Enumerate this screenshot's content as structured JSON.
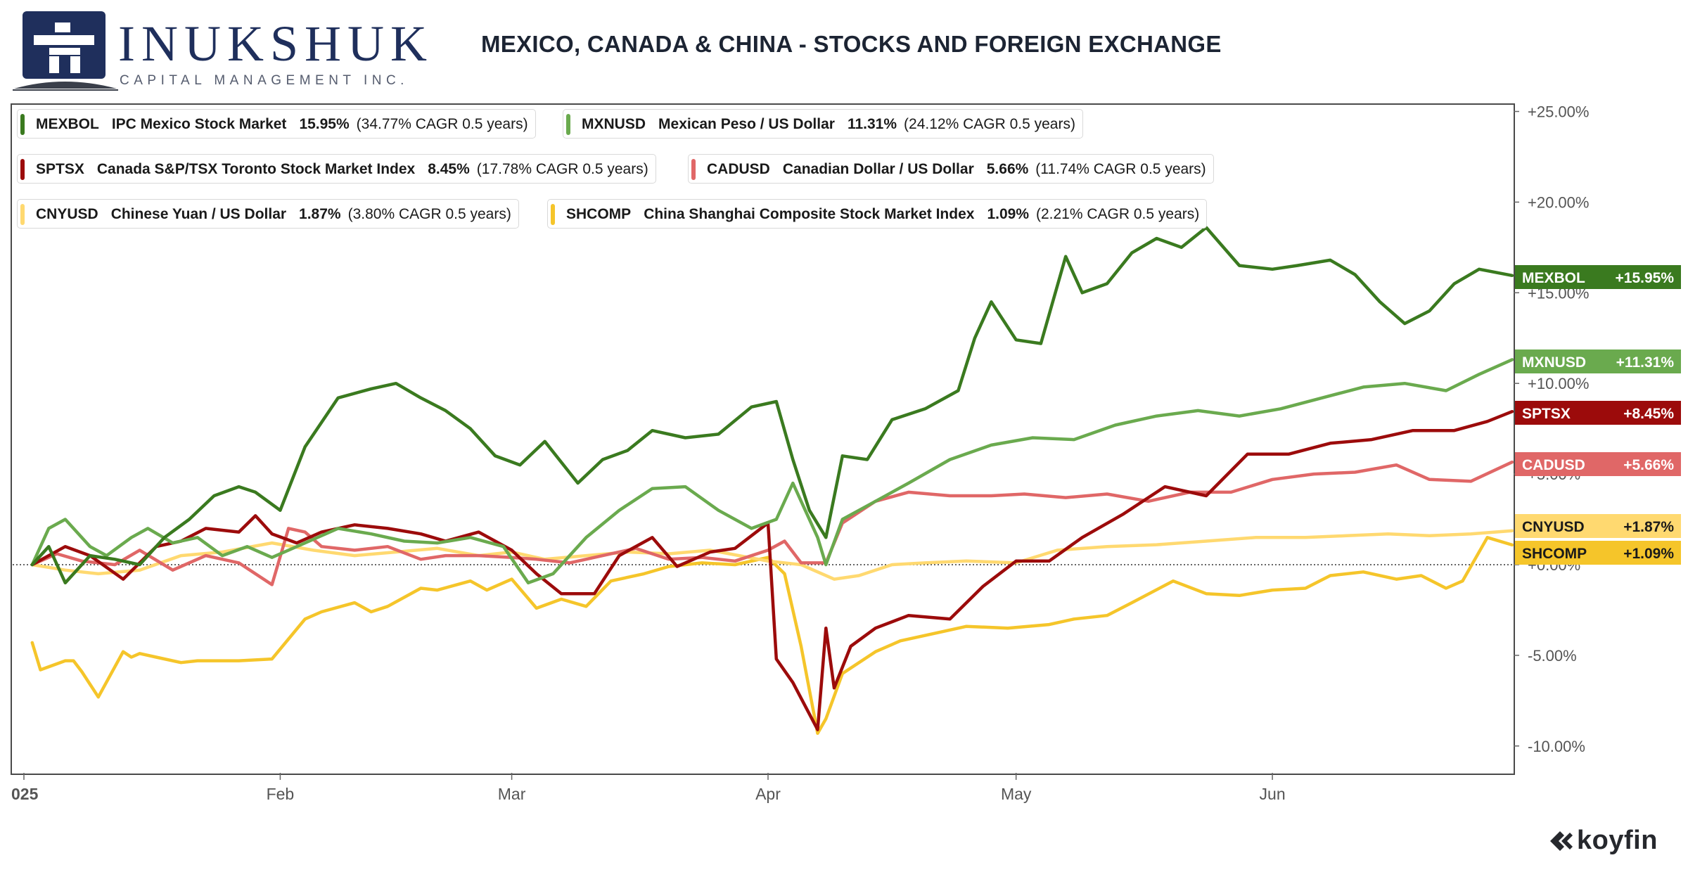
{
  "brand": {
    "name": "INUKSHUK",
    "subtitle": "CAPITAL MANAGEMENT INC."
  },
  "title": "MEXICO, CANADA & CHINA - STOCKS AND FOREIGN EXCHANGE",
  "footer": {
    "provider": "koyfin"
  },
  "legend": [
    {
      "symbol": "MEXBOL",
      "name": "IPC Mexico Stock Market",
      "pct": "15.95%",
      "cagr": "(34.77% CAGR 0.5 years)",
      "color": "#3a7a1f"
    },
    {
      "symbol": "MXNUSD",
      "name": "Mexican Peso / US Dollar",
      "pct": "11.31%",
      "cagr": "(24.12% CAGR 0.5 years)",
      "color": "#6aaa4e"
    },
    {
      "symbol": "SPTSX",
      "name": "Canada S&P/TSX Toronto Stock Market Index",
      "pct": "8.45%",
      "cagr": "(17.78% CAGR 0.5 years)",
      "color": "#9c0b0b"
    },
    {
      "symbol": "CADUSD",
      "name": "Canadian Dollar / US Dollar",
      "pct": "5.66%",
      "cagr": "(11.74% CAGR 0.5 years)",
      "color": "#e06767"
    },
    {
      "symbol": "CNYUSD",
      "name": "Chinese Yuan / US Dollar",
      "pct": "1.87%",
      "cagr": "(3.80% CAGR 0.5 years)",
      "color": "#ffd970"
    },
    {
      "symbol": "SHCOMP",
      "name": "China Shanghai Composite Stock Market Index",
      "pct": "1.09%",
      "cagr": "(2.21% CAGR 0.5 years)",
      "color": "#f5c52a"
    }
  ],
  "chart_data": {
    "type": "line",
    "ylabel": "",
    "y_unit": "%",
    "ylim": [
      -11.5,
      25.3
    ],
    "y_ticks": [
      "+25.00%",
      "+20.00%",
      "+15.00%",
      "+10.00%",
      "+5.00%",
      "+0.00%",
      "-5.00%",
      "-10.00%"
    ],
    "y_tick_values": [
      25,
      20,
      15,
      10,
      5,
      0,
      -5,
      -10
    ],
    "x_ticks": [
      "025",
      "Feb",
      "Mar",
      "Apr",
      "May",
      "Jun"
    ],
    "x_tick_dates": [
      "2025-01-02",
      "2025-02-01",
      "2025-03-01",
      "2025-04-01",
      "2025-05-01",
      "2025-06-01"
    ],
    "x_range": [
      "2025-01-01",
      "2025-06-30"
    ],
    "zero_line": true,
    "series": [
      {
        "name": "SHCOMP",
        "color": "#f5c52a",
        "end_label": "+1.09%",
        "x": [
          "2025-01-02",
          "2025-01-03",
          "2025-01-06",
          "2025-01-07",
          "2025-01-08",
          "2025-01-10",
          "2025-01-13",
          "2025-01-14",
          "2025-01-15",
          "2025-01-17",
          "2025-01-20",
          "2025-01-22",
          "2025-01-24",
          "2025-01-27",
          "2025-01-31",
          "2025-02-04",
          "2025-02-06",
          "2025-02-10",
          "2025-02-12",
          "2025-02-14",
          "2025-02-18",
          "2025-02-20",
          "2025-02-24",
          "2025-02-26",
          "2025-03-01",
          "2025-03-04",
          "2025-03-07",
          "2025-03-10",
          "2025-03-13",
          "2025-03-17",
          "2025-03-20",
          "2025-03-24",
          "2025-03-28",
          "2025-04-01",
          "2025-04-03",
          "2025-04-05",
          "2025-04-07",
          "2025-04-08",
          "2025-04-10",
          "2025-04-14",
          "2025-04-17",
          "2025-04-22",
          "2025-04-25",
          "2025-04-30",
          "2025-05-05",
          "2025-05-08",
          "2025-05-12",
          "2025-05-15",
          "2025-05-20",
          "2025-05-24",
          "2025-05-28",
          "2025-06-01",
          "2025-06-05",
          "2025-06-08",
          "2025-06-12",
          "2025-06-16",
          "2025-06-19",
          "2025-06-22",
          "2025-06-24",
          "2025-06-27",
          "2025-06-30"
        ],
        "values": [
          -4.3,
          -5.8,
          -5.3,
          -5.3,
          -5.9,
          -7.3,
          -4.8,
          -5.1,
          -4.9,
          -5.1,
          -5.4,
          -5.3,
          -5.3,
          -5.3,
          -5.2,
          -3.0,
          -2.6,
          -2.1,
          -2.6,
          -2.3,
          -1.3,
          -1.4,
          -0.9,
          -1.4,
          -0.8,
          -2.4,
          -1.9,
          -2.3,
          -0.9,
          -0.5,
          -0.1,
          0.1,
          0.0,
          0.4,
          -0.5,
          -4.5,
          -9.3,
          -8.5,
          -6.0,
          -4.8,
          -4.2,
          -3.7,
          -3.4,
          -3.5,
          -3.3,
          -3.0,
          -2.8,
          -2.1,
          -0.9,
          -1.6,
          -1.7,
          -1.4,
          -1.3,
          -0.6,
          -0.4,
          -0.8,
          -0.6,
          -1.3,
          -0.9,
          1.5,
          1.09
        ]
      },
      {
        "name": "CNYUSD",
        "color": "#ffd970",
        "end_label": "+1.87%",
        "x": [
          "2025-01-02",
          "2025-01-06",
          "2025-01-10",
          "2025-01-15",
          "2025-01-20",
          "2025-01-25",
          "2025-01-31",
          "2025-02-05",
          "2025-02-10",
          "2025-02-15",
          "2025-02-20",
          "2025-02-25",
          "2025-03-01",
          "2025-03-05",
          "2025-03-10",
          "2025-03-15",
          "2025-03-20",
          "2025-03-25",
          "2025-04-01",
          "2025-04-05",
          "2025-04-09",
          "2025-04-12",
          "2025-04-16",
          "2025-04-20",
          "2025-04-25",
          "2025-05-01",
          "2025-05-06",
          "2025-05-12",
          "2025-05-18",
          "2025-05-24",
          "2025-05-30",
          "2025-06-05",
          "2025-06-10",
          "2025-06-15",
          "2025-06-20",
          "2025-06-25",
          "2025-06-30"
        ],
        "values": [
          0.0,
          -0.3,
          -0.5,
          -0.3,
          0.5,
          0.7,
          1.2,
          0.8,
          0.5,
          0.7,
          0.9,
          0.5,
          0.7,
          0.3,
          0.5,
          0.7,
          0.6,
          0.8,
          0.2,
          0.0,
          -0.8,
          -0.6,
          0.0,
          0.1,
          0.2,
          0.1,
          0.8,
          1.0,
          1.1,
          1.3,
          1.5,
          1.5,
          1.6,
          1.7,
          1.6,
          1.7,
          1.87
        ]
      },
      {
        "name": "CADUSD",
        "color": "#e06767",
        "end_label": "+5.66%",
        "x": [
          "2025-01-02",
          "2025-01-05",
          "2025-01-08",
          "2025-01-12",
          "2025-01-15",
          "2025-01-19",
          "2025-01-23",
          "2025-01-27",
          "2025-01-31",
          "2025-02-02",
          "2025-02-04",
          "2025-02-06",
          "2025-02-10",
          "2025-02-14",
          "2025-02-18",
          "2025-02-21",
          "2025-02-25",
          "2025-03-01",
          "2025-03-04",
          "2025-03-08",
          "2025-03-12",
          "2025-03-16",
          "2025-03-20",
          "2025-03-24",
          "2025-03-28",
          "2025-04-01",
          "2025-04-03",
          "2025-04-05",
          "2025-04-08",
          "2025-04-10",
          "2025-04-14",
          "2025-04-18",
          "2025-04-23",
          "2025-04-28",
          "2025-05-02",
          "2025-05-07",
          "2025-05-12",
          "2025-05-17",
          "2025-05-22",
          "2025-05-27",
          "2025-06-01",
          "2025-06-06",
          "2025-06-11",
          "2025-06-16",
          "2025-06-20",
          "2025-06-25",
          "2025-06-30"
        ],
        "values": [
          0.0,
          0.6,
          0.2,
          0.0,
          0.8,
          -0.3,
          0.5,
          0.1,
          -1.1,
          2.0,
          1.8,
          1.0,
          0.8,
          1.0,
          0.3,
          0.5,
          0.5,
          0.4,
          0.3,
          0.1,
          0.5,
          0.9,
          0.3,
          0.4,
          0.2,
          0.8,
          1.3,
          0.1,
          0.1,
          2.3,
          3.5,
          4.0,
          3.8,
          3.8,
          3.9,
          3.7,
          3.9,
          3.5,
          4.0,
          4.0,
          4.7,
          5.0,
          5.1,
          5.5,
          4.7,
          4.6,
          5.66
        ]
      },
      {
        "name": "SPTSX",
        "color": "#9c0b0b",
        "end_label": "+8.45%",
        "x": [
          "2025-01-02",
          "2025-01-06",
          "2025-01-09",
          "2025-01-13",
          "2025-01-17",
          "2025-01-20",
          "2025-01-23",
          "2025-01-27",
          "2025-01-29",
          "2025-01-31",
          "2025-02-03",
          "2025-02-06",
          "2025-02-10",
          "2025-02-14",
          "2025-02-18",
          "2025-02-21",
          "2025-02-25",
          "2025-03-01",
          "2025-03-04",
          "2025-03-07",
          "2025-03-11",
          "2025-03-14",
          "2025-03-18",
          "2025-03-21",
          "2025-03-25",
          "2025-03-28",
          "2025-04-01",
          "2025-04-02",
          "2025-04-04",
          "2025-04-07",
          "2025-04-08",
          "2025-04-09",
          "2025-04-11",
          "2025-04-14",
          "2025-04-18",
          "2025-04-23",
          "2025-04-27",
          "2025-05-01",
          "2025-05-05",
          "2025-05-09",
          "2025-05-14",
          "2025-05-19",
          "2025-05-24",
          "2025-05-29",
          "2025-06-03",
          "2025-06-08",
          "2025-06-13",
          "2025-06-18",
          "2025-06-23",
          "2025-06-27",
          "2025-06-30"
        ],
        "values": [
          0.0,
          1.0,
          0.5,
          -0.8,
          1.0,
          1.3,
          2.0,
          1.8,
          2.7,
          1.7,
          1.2,
          1.8,
          2.2,
          2.0,
          1.7,
          1.3,
          1.8,
          0.8,
          -0.5,
          -1.6,
          -1.6,
          0.5,
          1.5,
          -0.1,
          0.7,
          0.9,
          2.3,
          -5.2,
          -6.5,
          -9.1,
          -3.5,
          -6.8,
          -4.5,
          -3.5,
          -2.8,
          -3.0,
          -1.2,
          0.2,
          0.2,
          1.5,
          2.8,
          4.3,
          3.8,
          6.1,
          6.1,
          6.7,
          6.9,
          7.4,
          7.4,
          7.9,
          8.45
        ]
      },
      {
        "name": "MXNUSD",
        "color": "#6aaa4e",
        "end_label": "+11.31%",
        "x": [
          "2025-01-02",
          "2025-01-04",
          "2025-01-06",
          "2025-01-09",
          "2025-01-11",
          "2025-01-14",
          "2025-01-16",
          "2025-01-19",
          "2025-01-22",
          "2025-01-25",
          "2025-01-28",
          "2025-01-31",
          "2025-02-04",
          "2025-02-08",
          "2025-02-12",
          "2025-02-16",
          "2025-02-20",
          "2025-02-24",
          "2025-02-28",
          "2025-03-03",
          "2025-03-06",
          "2025-03-10",
          "2025-03-14",
          "2025-03-18",
          "2025-03-22",
          "2025-03-26",
          "2025-03-30",
          "2025-04-02",
          "2025-04-04",
          "2025-04-07",
          "2025-04-08",
          "2025-04-10",
          "2025-04-14",
          "2025-04-18",
          "2025-04-23",
          "2025-04-28",
          "2025-05-03",
          "2025-05-08",
          "2025-05-13",
          "2025-05-18",
          "2025-05-23",
          "2025-05-28",
          "2025-06-02",
          "2025-06-07",
          "2025-06-12",
          "2025-06-17",
          "2025-06-22",
          "2025-06-26",
          "2025-06-30"
        ],
        "values": [
          0.0,
          2.0,
          2.5,
          1.0,
          0.5,
          1.5,
          2.0,
          1.2,
          1.5,
          0.5,
          1.0,
          0.4,
          1.2,
          2.0,
          1.7,
          1.3,
          1.2,
          1.5,
          1.0,
          -1.0,
          -0.5,
          1.5,
          3.0,
          4.2,
          4.3,
          3.0,
          2.0,
          2.5,
          4.5,
          1.5,
          0.0,
          2.5,
          3.5,
          4.5,
          5.8,
          6.6,
          7.0,
          6.9,
          7.7,
          8.2,
          8.5,
          8.2,
          8.6,
          9.2,
          9.8,
          10.0,
          9.6,
          10.5,
          11.31
        ]
      },
      {
        "name": "MEXBOL",
        "color": "#3a7a1f",
        "end_label": "+15.95%",
        "x": [
          "2025-01-02",
          "2025-01-04",
          "2025-01-06",
          "2025-01-09",
          "2025-01-12",
          "2025-01-15",
          "2025-01-18",
          "2025-01-21",
          "2025-01-24",
          "2025-01-27",
          "2025-01-29",
          "2025-02-01",
          "2025-02-04",
          "2025-02-08",
          "2025-02-12",
          "2025-02-15",
          "2025-02-18",
          "2025-02-21",
          "2025-02-24",
          "2025-02-27",
          "2025-03-02",
          "2025-03-05",
          "2025-03-09",
          "2025-03-12",
          "2025-03-15",
          "2025-03-18",
          "2025-03-22",
          "2025-03-26",
          "2025-03-30",
          "2025-04-02",
          "2025-04-04",
          "2025-04-06",
          "2025-04-08",
          "2025-04-10",
          "2025-04-13",
          "2025-04-16",
          "2025-04-20",
          "2025-04-24",
          "2025-04-26",
          "2025-04-28",
          "2025-05-01",
          "2025-05-04",
          "2025-05-07",
          "2025-05-09",
          "2025-05-12",
          "2025-05-15",
          "2025-05-18",
          "2025-05-21",
          "2025-05-24",
          "2025-05-28",
          "2025-06-01",
          "2025-06-04",
          "2025-06-08",
          "2025-06-11",
          "2025-06-14",
          "2025-06-17",
          "2025-06-20",
          "2025-06-23",
          "2025-06-26",
          "2025-06-30"
        ],
        "values": [
          0.0,
          1.0,
          -1.0,
          0.5,
          0.3,
          0.0,
          1.5,
          2.5,
          3.8,
          4.3,
          4.0,
          3.0,
          6.5,
          9.2,
          9.7,
          10.0,
          9.2,
          8.5,
          7.5,
          6.0,
          5.5,
          6.8,
          4.5,
          5.8,
          6.3,
          7.4,
          7.0,
          7.2,
          8.7,
          9.0,
          5.8,
          3.0,
          1.5,
          6.0,
          5.8,
          8.0,
          8.6,
          9.6,
          12.5,
          14.5,
          12.4,
          12.2,
          17.0,
          15.0,
          15.5,
          17.2,
          18.0,
          17.5,
          18.6,
          16.5,
          16.3,
          16.5,
          16.8,
          16.0,
          14.5,
          13.3,
          14.0,
          15.5,
          16.3,
          15.95
        ]
      }
    ]
  }
}
